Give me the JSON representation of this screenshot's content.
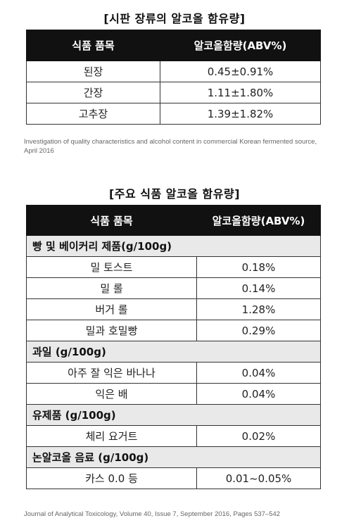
{
  "table1": {
    "title": "[시판 장류의 알코올 함유량]",
    "headers": [
      "식품 품목",
      "알코올함량(ABV%)"
    ],
    "rows": [
      [
        "된장",
        "0.45±0.91%"
      ],
      [
        "간장",
        "1.11±1.80%"
      ],
      [
        "고추장",
        "1.39±1.82%"
      ]
    ],
    "source": "Investigation of quality characteristics and alcohol content in commercial Korean fermented source, April 2016"
  },
  "table2": {
    "title": "[주요 식품 알코올 함유량]",
    "headers": [
      "식품 품목",
      "알코올함량(ABV%)"
    ],
    "groups": [
      {
        "category": "빵 및 베이커리 제품(g/100g)",
        "rows": [
          [
            "밀 토스트",
            "0.18%"
          ],
          [
            "밀 롤",
            "0.14%"
          ],
          [
            "버거 롤",
            "1.28%"
          ],
          [
            "밀과 호밀빵",
            "0.29%"
          ]
        ]
      },
      {
        "category": "과일 (g/100g)",
        "rows": [
          [
            "아주 잘 익은 바나나",
            "0.04%"
          ],
          [
            "익은 배",
            "0.04%"
          ]
        ]
      },
      {
        "category": "유제품 (g/100g)",
        "rows": [
          [
            "체리 요거트",
            "0.02%"
          ]
        ]
      },
      {
        "category": "논알코올 음료 (g/100g)",
        "rows": [
          [
            "카스 0.0 등",
            "0.01~0.05%"
          ]
        ]
      }
    ],
    "source": "Journal of Analytical Toxicology, Volume 40, Issue 7, September 2016, Pages 537–542"
  }
}
